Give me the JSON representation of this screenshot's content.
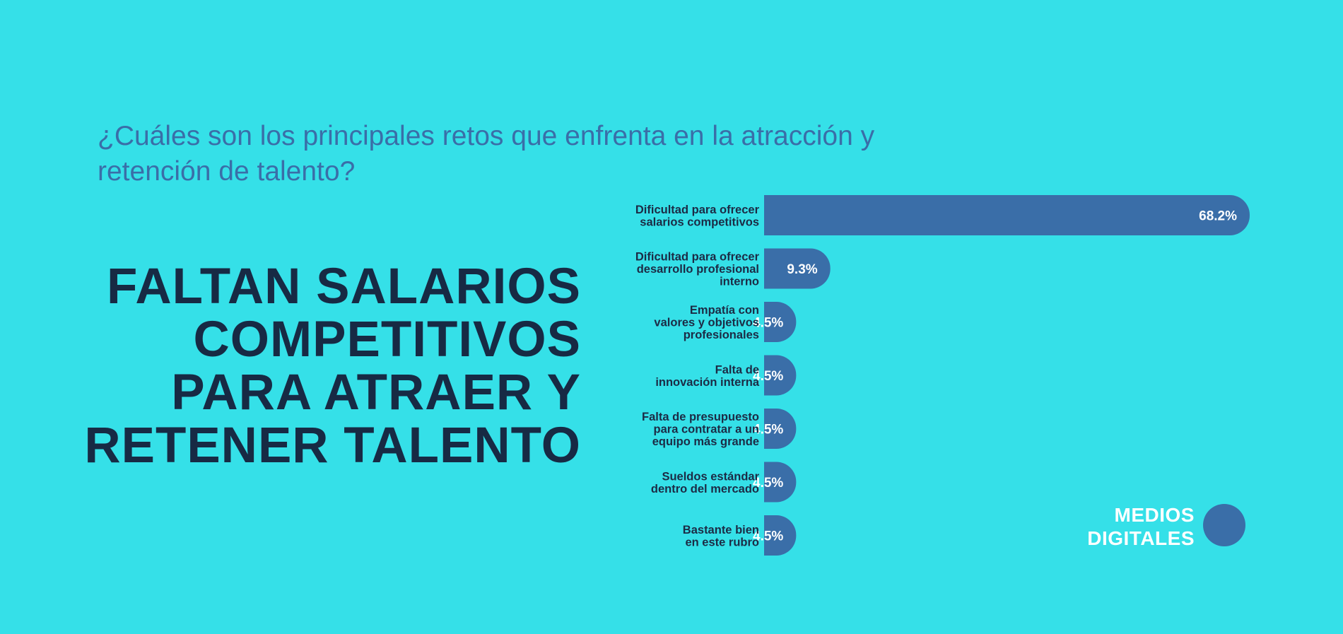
{
  "question": "¿Cuáles son los principales retos que enfrenta en la atracción y retención de talento?",
  "headline": "FALTAN SALARIOS\nCOMPETITIVOS\nPARA ATRAER Y\nRETENER TALENTO",
  "brand": {
    "line1": "MEDIOS",
    "line2": "DIGITALES"
  },
  "colors": {
    "background": "#35e0e8",
    "bar": "#3a6ea8",
    "headline": "#172a44",
    "question": "#3a6ea8"
  },
  "chart_data": {
    "type": "bar",
    "orientation": "horizontal",
    "categories": [
      [
        "Dificultad para ofrecer",
        "salarios competitivos"
      ],
      [
        "Dificultad para ofrecer",
        "desarrollo profesional",
        "interno"
      ],
      [
        "Empatía con",
        "valores y objetivos",
        "profesionales"
      ],
      [
        "Falta de",
        "innovación interna"
      ],
      [
        "Falta de presupuesto",
        "para contratar a un",
        "equipo más grande"
      ],
      [
        "Sueldos estándar",
        "dentro del mercado"
      ],
      [
        "Bastante bien",
        "en este rubro"
      ]
    ],
    "values": [
      68.2,
      9.3,
      4.5,
      4.5,
      4.5,
      4.5,
      4.5
    ],
    "value_labels": [
      "68.2%",
      "9.3%",
      "4.5%",
      "4.5%",
      "4.5%",
      "4.5%",
      "4.5%"
    ],
    "xlim": [
      0,
      68.2
    ],
    "grid": false,
    "legend": "none"
  }
}
